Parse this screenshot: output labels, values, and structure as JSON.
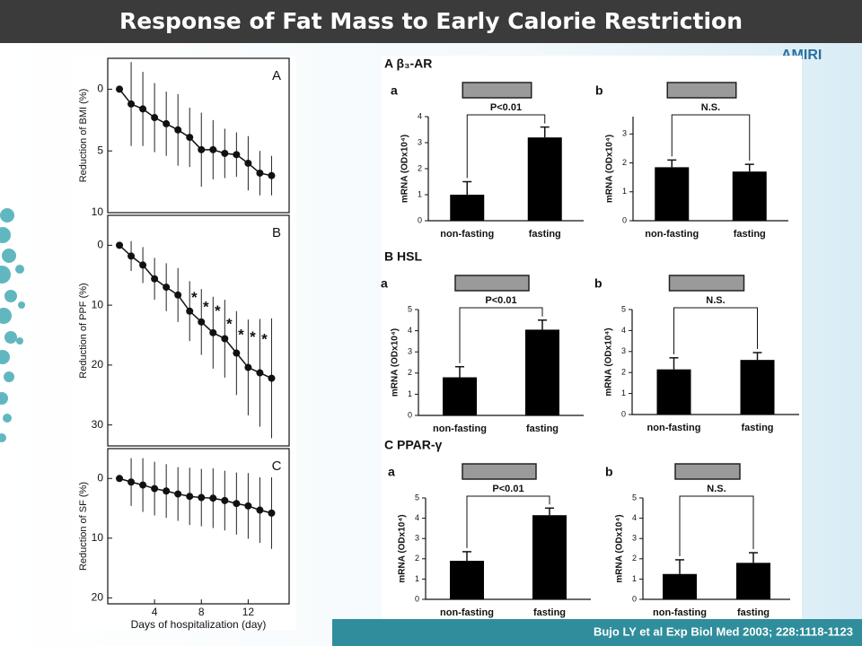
{
  "title": "Response of Fat Mass to Early Calorie Restriction",
  "citation": "Bujo LY et al Exp Biol Med 2003; 228:1118-1123",
  "logo": "AMIRI",
  "chart_data": [
    {
      "type": "line",
      "panel": "A",
      "ylabel": "Reduction of BMI (%)",
      "color": "#111111",
      "inverted": true,
      "x": [
        1,
        2,
        3,
        4,
        5,
        6,
        7,
        8,
        9,
        10,
        11,
        12,
        13,
        14
      ],
      "values": [
        0,
        1.2,
        1.6,
        2.3,
        2.8,
        3.3,
        3.9,
        4.9,
        4.9,
        5.2,
        5.3,
        6.0,
        6.8,
        7.0
      ],
      "errors": [
        0,
        3.4,
        3.0,
        2.8,
        2.6,
        2.9,
        2.4,
        3.0,
        2.4,
        2.0,
        1.8,
        2.2,
        1.8,
        1.6
      ],
      "xlim": [
        0,
        15.5
      ],
      "ylim": [
        -2.5,
        10
      ],
      "yticks": [
        0,
        5,
        10
      ]
    },
    {
      "type": "line",
      "panel": "B",
      "ylabel": "Reduction of PPF (%)",
      "color": "#111111",
      "inverted": true,
      "x": [
        1,
        2,
        3,
        4,
        5,
        6,
        7,
        8,
        9,
        10,
        11,
        12,
        13,
        14
      ],
      "values": [
        0,
        1.8,
        3.3,
        5.6,
        7.0,
        8.3,
        11.0,
        12.8,
        14.6,
        15.6,
        18.0,
        20.4,
        21.3,
        22.2
      ],
      "errors": [
        0,
        2.5,
        3.0,
        3.5,
        4.0,
        4.5,
        5.0,
        5.5,
        6.0,
        6.5,
        7.0,
        8.0,
        9.0,
        10.0
      ],
      "annotations": [
        {
          "text": "*",
          "x": 8
        },
        {
          "text": "*",
          "x": 9
        },
        {
          "text": "*",
          "x": 10
        },
        {
          "text": "*",
          "x": 11
        },
        {
          "text": "*",
          "x": 12
        },
        {
          "text": "*",
          "x": 13
        },
        {
          "text": "*",
          "x": 14
        }
      ],
      "xlim": [
        0,
        15.5
      ],
      "ylim": [
        -5,
        33.5
      ],
      "yticks": [
        0,
        10,
        20,
        30
      ]
    },
    {
      "type": "line",
      "panel": "C",
      "ylabel": "Reduction of SF (%)",
      "xlabel": "Days of hospitalization (day)",
      "color": "#111111",
      "inverted": true,
      "x": [
        1,
        2,
        3,
        4,
        5,
        6,
        7,
        8,
        9,
        10,
        11,
        12,
        13,
        14
      ],
      "values": [
        0,
        0.6,
        1.1,
        1.7,
        2.1,
        2.6,
        3.0,
        3.2,
        3.3,
        3.7,
        4.2,
        4.6,
        5.3,
        5.8
      ],
      "errors": [
        0,
        4.0,
        4.5,
        4.5,
        4.5,
        4.5,
        4.8,
        4.8,
        5.0,
        5.0,
        5.2,
        5.5,
        5.5,
        6.0
      ],
      "xlim": [
        0,
        15.5
      ],
      "ylim": [
        -5,
        21
      ],
      "xticks": [
        4,
        8,
        12
      ],
      "yticks": [
        0,
        10,
        20
      ]
    },
    {
      "type": "bar",
      "group_title": "A  β₃-AR",
      "panel": "a",
      "ylabel": "mRNA (ODx10⁴)",
      "annotation": "P<0.01",
      "color": "#000000",
      "categories": [
        "non-fasting",
        "fasting"
      ],
      "values": [
        1.0,
        3.2
      ],
      "errors": [
        0.5,
        0.4
      ],
      "ylim": [
        0,
        4
      ],
      "yticks": [
        0,
        1,
        2,
        3,
        4
      ]
    },
    {
      "type": "bar",
      "panel": "b",
      "ylabel": "mRNA (ODx10⁴)",
      "annotation": "N.S.",
      "color": "#000000",
      "categories": [
        "non-fasting",
        "fasting"
      ],
      "values": [
        1.85,
        1.7
      ],
      "errors": [
        0.25,
        0.25
      ],
      "ylim": [
        0,
        3.6
      ],
      "yticks": [
        0,
        1,
        2,
        3
      ]
    },
    {
      "type": "bar",
      "group_title": "B  HSL",
      "panel": "a",
      "ylabel": "mRNA (ODx10⁴)",
      "annotation": "P<0.01",
      "color": "#000000",
      "categories": [
        "non-fasting",
        "fasting"
      ],
      "values": [
        1.8,
        4.05
      ],
      "errors": [
        0.5,
        0.45
      ],
      "ylim": [
        0,
        5
      ],
      "yticks": [
        0,
        1,
        2,
        3,
        4,
        5
      ]
    },
    {
      "type": "bar",
      "panel": "b",
      "ylabel": "mRNA (ODx10⁴)",
      "annotation": "N.S.",
      "color": "#000000",
      "categories": [
        "non-fasting",
        "fasting"
      ],
      "values": [
        2.15,
        2.6
      ],
      "errors": [
        0.55,
        0.35
      ],
      "ylim": [
        0,
        5
      ],
      "yticks": [
        0,
        1,
        2,
        3,
        4,
        5
      ]
    },
    {
      "type": "bar",
      "group_title": "C  PPAR-γ",
      "panel": "a",
      "ylabel": "mRNA (ODx10⁴)",
      "annotation": "P<0.01",
      "color": "#000000",
      "categories": [
        "non-fasting",
        "fasting"
      ],
      "values": [
        1.9,
        4.15
      ],
      "errors": [
        0.45,
        0.35
      ],
      "ylim": [
        0,
        5
      ],
      "yticks": [
        0,
        1,
        2,
        3,
        4,
        5
      ]
    },
    {
      "type": "bar",
      "panel": "b",
      "ylabel": "mRNA (ODx10⁴)",
      "annotation": "N.S.",
      "color": "#000000",
      "categories": [
        "non-fasting",
        "fasting"
      ],
      "values": [
        1.25,
        1.8
      ],
      "errors": [
        0.7,
        0.5
      ],
      "ylim": [
        0,
        5
      ],
      "yticks": [
        0,
        1,
        2,
        3,
        4,
        5
      ]
    }
  ]
}
